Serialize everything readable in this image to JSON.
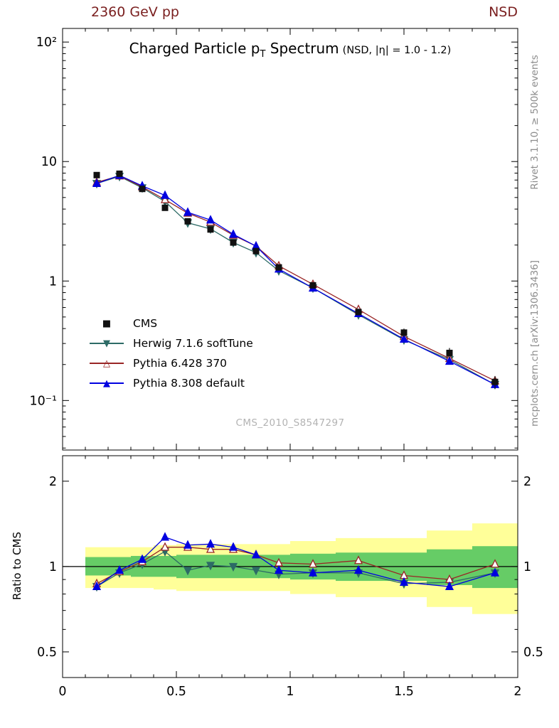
{
  "page": {
    "top_left_title": "2360 GeV pp",
    "top_right_title": "NSD",
    "right_label_top": "Rivet 3.1.10, ≥ 500k events",
    "right_label_bottom": "mcplots.cern.ch [arXiv:1306.3436]",
    "watermark": "CMS_2010_S8547297",
    "colors": {
      "header": "#7a1f1f",
      "credits": "#8c8c8c",
      "watermark": "#b3b3b3"
    }
  },
  "legend": {
    "items": [
      {
        "label": "CMS",
        "glyph": "■",
        "color": "#111111",
        "line": false
      },
      {
        "label": "Herwig 7.1.6 softTune",
        "glyph": "▼",
        "color": "#2d6b66",
        "line": true
      },
      {
        "label": "Pythia 6.428 370",
        "glyph": "△",
        "color": "#992626",
        "line": true
      },
      {
        "label": "Pythia 8.308 default",
        "glyph": "▲",
        "color": "#0000e0",
        "line": true
      }
    ]
  },
  "chart_data": {
    "type": "line",
    "title": "Charged Particle p_T Spectrum",
    "subtitle": "(NSD, |η| = 1.0 - 1.2)",
    "title_parts": {
      "part1": "Charged Particle p",
      "sub": "T",
      "part2": " Spectrum"
    },
    "xlabel": "",
    "ylabel": "",
    "xlim": [
      0,
      2
    ],
    "ylim_main": [
      0.0385,
      130
    ],
    "yscale": "log",
    "grid": false,
    "legend_position": "inside-left-bottom",
    "x": [
      0.15,
      0.25,
      0.35,
      0.45,
      0.55,
      0.65,
      0.75,
      0.85,
      0.95,
      1.1,
      1.3,
      1.5,
      1.7,
      1.9
    ],
    "series": [
      {
        "name": "CMS",
        "role": "data",
        "marker": "square",
        "color": "#111111",
        "values": [
          7.7,
          7.9,
          5.9,
          4.1,
          3.16,
          2.7,
          2.1,
          1.78,
          1.3,
          0.92,
          0.55,
          0.37,
          0.25,
          0.143
        ],
        "err_frac": [
          0.03,
          0.03,
          0.03,
          0.03,
          0.03,
          0.03,
          0.03,
          0.04,
          0.04,
          0.05,
          0.06,
          0.08,
          0.1,
          0.12
        ]
      },
      {
        "name": "Herwig 7.1.6 softTune",
        "role": "mc",
        "marker": "triangle-down",
        "color": "#2d6b66",
        "values": [
          6.55,
          7.51,
          6.02,
          4.63,
          3.07,
          2.73,
          2.1,
          1.73,
          1.22,
          0.874,
          0.522,
          0.322,
          0.22,
          0.136
        ],
        "ratio": [
          0.85,
          0.95,
          1.02,
          1.13,
          0.97,
          1.01,
          1.0,
          0.97,
          0.94,
          0.95,
          0.95,
          0.87,
          0.88,
          0.95
        ]
      },
      {
        "name": "Pythia 6.428 370",
        "role": "mc",
        "marker": "triangle-up-open",
        "color": "#992626",
        "values": [
          6.7,
          7.58,
          6.14,
          4.8,
          3.7,
          3.11,
          2.42,
          1.96,
          1.34,
          0.938,
          0.578,
          0.344,
          0.225,
          0.146
        ],
        "ratio": [
          0.87,
          0.96,
          1.04,
          1.17,
          1.17,
          1.15,
          1.15,
          1.1,
          1.03,
          1.02,
          1.05,
          0.93,
          0.9,
          1.02
        ]
      },
      {
        "name": "Pythia 8.308 default",
        "role": "mc",
        "marker": "triangle-up",
        "color": "#0000e0",
        "values": [
          6.55,
          7.66,
          6.25,
          5.21,
          3.76,
          3.24,
          2.46,
          1.96,
          1.26,
          0.874,
          0.534,
          0.326,
          0.213,
          0.136
        ],
        "ratio": [
          0.85,
          0.97,
          1.06,
          1.27,
          1.19,
          1.2,
          1.17,
          1.1,
          0.97,
          0.95,
          0.97,
          0.88,
          0.85,
          0.95
        ]
      }
    ],
    "axes": {
      "x_major": [
        {
          "v": 0,
          "label": "0"
        },
        {
          "v": 0.5,
          "label": "0.5"
        },
        {
          "v": 1,
          "label": "1"
        },
        {
          "v": 1.5,
          "label": "1.5"
        },
        {
          "v": 2,
          "label": "2"
        }
      ],
      "y_major_main": [
        {
          "v": 100,
          "label": "10²"
        },
        {
          "v": 10,
          "label": "10"
        },
        {
          "v": 1,
          "label": "1"
        },
        {
          "v": 0.1,
          "label": "10⁻¹"
        }
      ],
      "ratio_major": [
        {
          "v": 2,
          "label": "2"
        },
        {
          "v": 1,
          "label": "1"
        },
        {
          "v": 0.5,
          "label": "0.5"
        }
      ],
      "ratio_minor": [
        0.6,
        0.7,
        0.8,
        0.9
      ]
    },
    "ratio": {
      "ylabel": "Ratio to CMS",
      "ylim": [
        0.406,
        2.46
      ],
      "yscale": "log",
      "reference_line": 1,
      "band_edges": [
        0.1,
        0.2,
        0.3,
        0.4,
        0.5,
        0.6,
        0.7,
        0.8,
        0.9,
        1.0,
        1.2,
        1.4,
        1.6,
        1.8,
        2.0
      ],
      "yellow_lo": [
        0.84,
        0.84,
        0.84,
        0.83,
        0.82,
        0.82,
        0.82,
        0.82,
        0.82,
        0.8,
        0.78,
        0.78,
        0.72,
        0.68
      ],
      "yellow_hi": [
        1.17,
        1.17,
        1.17,
        1.19,
        1.2,
        1.2,
        1.2,
        1.2,
        1.2,
        1.23,
        1.26,
        1.26,
        1.34,
        1.42
      ],
      "green_lo": [
        0.93,
        0.93,
        0.92,
        0.92,
        0.91,
        0.91,
        0.91,
        0.91,
        0.91,
        0.9,
        0.89,
        0.89,
        0.86,
        0.84
      ],
      "green_hi": [
        1.08,
        1.08,
        1.09,
        1.09,
        1.1,
        1.1,
        1.1,
        1.1,
        1.1,
        1.11,
        1.12,
        1.12,
        1.15,
        1.18
      ],
      "yellow_color": "#ffff99",
      "green_color": "#66cc66"
    }
  }
}
